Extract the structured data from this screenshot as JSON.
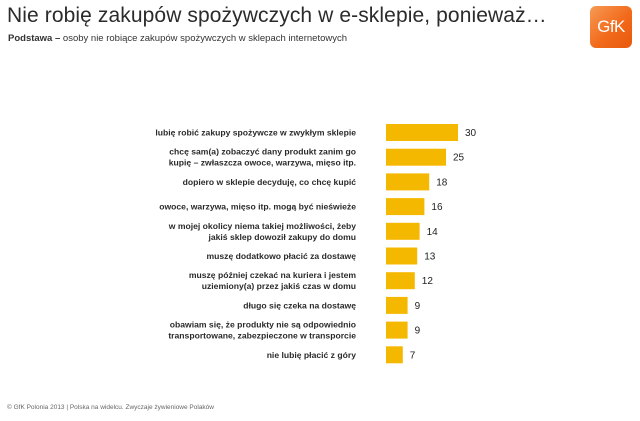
{
  "header": {
    "title": "Nie robię zakupów spożywczych w e-sklepie, ponieważ…",
    "subtitle_bold": "Podstawa – ",
    "subtitle_rest": "osoby nie robiące zakupów spożywczych w sklepach internetowych"
  },
  "brand": {
    "logo_text": "GfK",
    "accent": "#f07c22",
    "bar_color": "#f5b800"
  },
  "footer": {
    "text": "© GfK Polonia 2013 | Polska na widelcu. Zwyczaje żywieniowe Polaków"
  },
  "chart_data": {
    "type": "bar",
    "orientation": "horizontal",
    "title": "Nie robię zakupów spożywczych w e-sklepie, ponieważ…",
    "xlabel": "",
    "ylabel": "",
    "xlim": [
      0,
      30
    ],
    "grid": false,
    "categories": [
      [
        "lubię robić zakupy spożywcze w zwykłym sklepie"
      ],
      [
        "chcę sam(a) zobaczyć dany produkt zanim go",
        "kupię – zwłaszcza owoce, warzywa, mięso itp."
      ],
      [
        "dopiero w sklepie decyduję, co chcę kupić"
      ],
      [
        "owoce, warzywa, mięso itp. mogą być nieświeże"
      ],
      [
        "w mojej okolicy niema takiej możliwości, żeby",
        "jakiś sklep dowoził zakupy do domu"
      ],
      [
        "muszę dodatkowo płacić za dostawę"
      ],
      [
        "muszę później czekać na kuriera i jestem",
        "uziemiony(a) przez jakiś czas w domu"
      ],
      [
        "długo się czeka na dostawę"
      ],
      [
        "obawiam się, że produkty nie są odpowiednio",
        "transportowane, zabezpieczone w transporcie"
      ],
      [
        "nie lubię płacić z góry"
      ]
    ],
    "values": [
      30,
      25,
      18,
      16,
      14,
      13,
      12,
      9,
      9,
      7
    ]
  }
}
